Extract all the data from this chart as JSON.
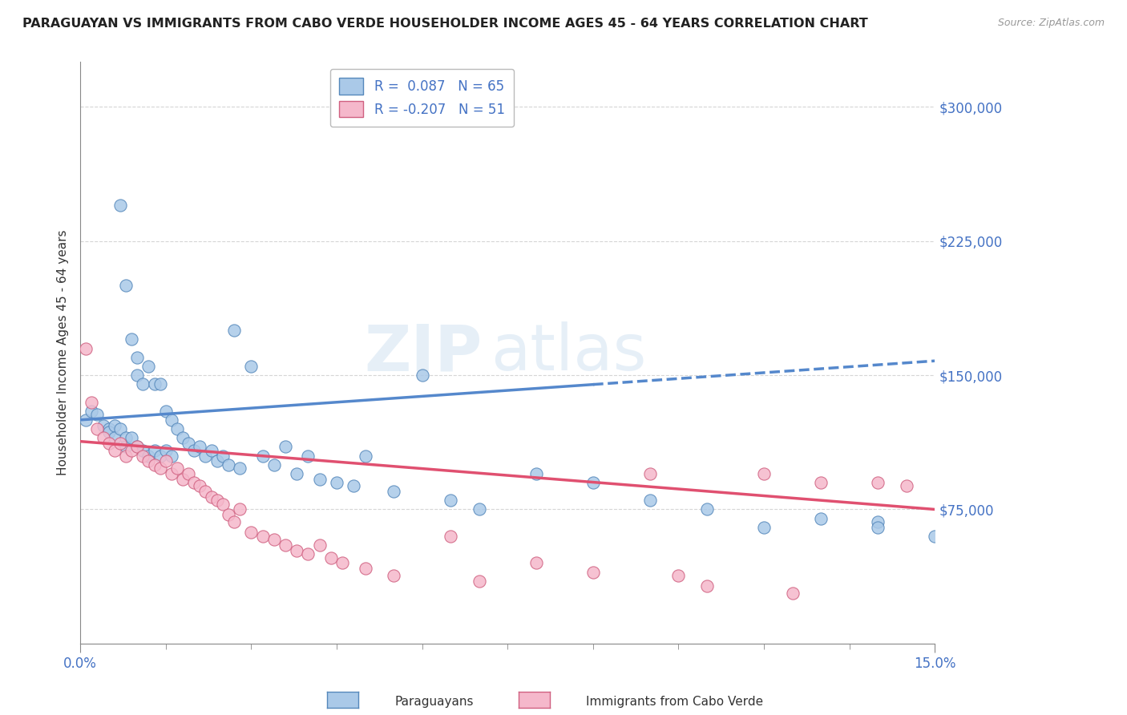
{
  "title": "PARAGUAYAN VS IMMIGRANTS FROM CABO VERDE HOUSEHOLDER INCOME AGES 45 - 64 YEARS CORRELATION CHART",
  "source": "Source: ZipAtlas.com",
  "ylabel": "Householder Income Ages 45 - 64 years",
  "xlim": [
    0.0,
    0.15
  ],
  "ylim": [
    0,
    325000
  ],
  "yticks": [
    75000,
    150000,
    225000,
    300000
  ],
  "ytick_labels": [
    "$75,000",
    "$150,000",
    "$225,000",
    "$300,000"
  ],
  "xtick_labels": [
    "0.0%",
    "15.0%"
  ],
  "xtick_pos": [
    0.0,
    0.15
  ],
  "watermark_zip": "ZIP",
  "watermark_atlas": "atlas",
  "blue_R": 0.087,
  "blue_N": 65,
  "pink_R": -0.207,
  "pink_N": 51,
  "blue_color": "#aac9e8",
  "blue_edge": "#5588bb",
  "pink_color": "#f5b8cb",
  "pink_edge": "#d06080",
  "blue_line_color": "#5588cc",
  "pink_line_color": "#e05070",
  "legend_label_blue": "Paraguayans",
  "legend_label_pink": "Immigrants from Cabo Verde",
  "blue_scatter_x": [
    0.001,
    0.002,
    0.003,
    0.004,
    0.005,
    0.005,
    0.006,
    0.006,
    0.007,
    0.007,
    0.008,
    0.008,
    0.008,
    0.009,
    0.009,
    0.01,
    0.01,
    0.01,
    0.011,
    0.011,
    0.012,
    0.012,
    0.013,
    0.013,
    0.014,
    0.014,
    0.015,
    0.015,
    0.016,
    0.016,
    0.017,
    0.018,
    0.019,
    0.02,
    0.021,
    0.022,
    0.023,
    0.024,
    0.025,
    0.026,
    0.027,
    0.028,
    0.03,
    0.032,
    0.034,
    0.036,
    0.038,
    0.04,
    0.042,
    0.045,
    0.048,
    0.05,
    0.055,
    0.06,
    0.065,
    0.07,
    0.08,
    0.09,
    0.1,
    0.11,
    0.12,
    0.13,
    0.14,
    0.14,
    0.15
  ],
  "blue_scatter_y": [
    125000,
    130000,
    128000,
    122000,
    120000,
    118000,
    122000,
    115000,
    245000,
    120000,
    200000,
    115000,
    110000,
    170000,
    115000,
    160000,
    150000,
    110000,
    145000,
    108000,
    155000,
    105000,
    145000,
    108000,
    145000,
    105000,
    130000,
    108000,
    125000,
    105000,
    120000,
    115000,
    112000,
    108000,
    110000,
    105000,
    108000,
    102000,
    105000,
    100000,
    175000,
    98000,
    155000,
    105000,
    100000,
    110000,
    95000,
    105000,
    92000,
    90000,
    88000,
    105000,
    85000,
    150000,
    80000,
    75000,
    95000,
    90000,
    80000,
    75000,
    65000,
    70000,
    68000,
    65000,
    60000
  ],
  "pink_scatter_x": [
    0.001,
    0.002,
    0.003,
    0.004,
    0.005,
    0.006,
    0.007,
    0.008,
    0.009,
    0.01,
    0.011,
    0.012,
    0.013,
    0.014,
    0.015,
    0.016,
    0.017,
    0.018,
    0.019,
    0.02,
    0.021,
    0.022,
    0.023,
    0.024,
    0.025,
    0.026,
    0.027,
    0.028,
    0.03,
    0.032,
    0.034,
    0.036,
    0.038,
    0.04,
    0.042,
    0.044,
    0.046,
    0.05,
    0.055,
    0.065,
    0.07,
    0.08,
    0.09,
    0.1,
    0.105,
    0.11,
    0.12,
    0.125,
    0.13,
    0.14,
    0.145
  ],
  "pink_scatter_y": [
    165000,
    135000,
    120000,
    115000,
    112000,
    108000,
    112000,
    105000,
    108000,
    110000,
    105000,
    102000,
    100000,
    98000,
    102000,
    95000,
    98000,
    92000,
    95000,
    90000,
    88000,
    85000,
    82000,
    80000,
    78000,
    72000,
    68000,
    75000,
    62000,
    60000,
    58000,
    55000,
    52000,
    50000,
    55000,
    48000,
    45000,
    42000,
    38000,
    60000,
    35000,
    45000,
    40000,
    95000,
    38000,
    32000,
    95000,
    28000,
    90000,
    90000,
    88000
  ],
  "blue_trend_x": [
    0.0,
    0.15
  ],
  "blue_trend_y": [
    125000,
    158000
  ],
  "pink_trend_x": [
    0.0,
    0.15
  ],
  "pink_trend_y": [
    113000,
    75000
  ]
}
